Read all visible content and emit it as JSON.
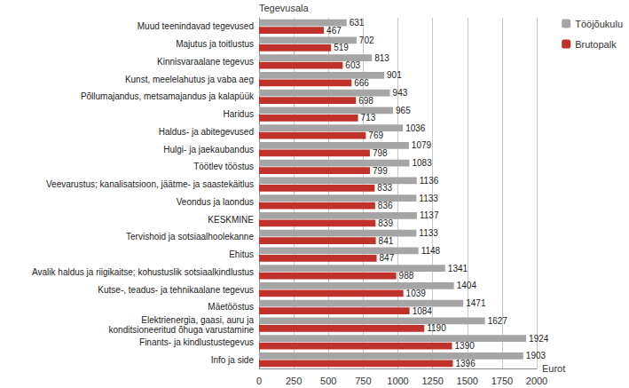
{
  "chart_data": {
    "type": "bar",
    "orientation": "horizontal",
    "y_label": "Tegevusala",
    "x_label": "Eurot",
    "categories": [
      "Muud teenindavad tegevused",
      "Majutus ja toitlustus",
      "Kinnisvaraalane tegevus",
      "Kunst, meelelahutus ja vaba aeg",
      "Põllumajandus, metsamajandus ja kalapüük",
      "Haridus",
      "Haldus- ja abitegevused",
      "Hulgi- ja jaekaubandus",
      "Töötlev tööstus",
      "Veevarustus; kanalisatsioon, jäätme- ja saastekäitlus",
      "Veondus ja laondus",
      "KESKMINE",
      "Tervishoid ja sotsiaalhoolekanne",
      "Ehitus",
      "Avalik haldus ja riigikaitse; kohustuslik sotsiaalkindlustus",
      "Kutse-, teadus- ja tehnikaalane tegevus",
      "Mäetööstus",
      "Elektrienergia, gaasi, auru ja\nkonditsioneeritud õhuga varustamine",
      "Finants- ja kindlustustegevus",
      "Info ja side"
    ],
    "series": [
      {
        "name": "Tööjõukulu",
        "color": "#a5a5a5",
        "values": [
          631,
          702,
          813,
          901,
          943,
          965,
          1036,
          1079,
          1083,
          1136,
          1133,
          1137,
          1133,
          1148,
          1341,
          1404,
          1471,
          1627,
          1924,
          1903
        ]
      },
      {
        "name": "Brutopalk",
        "color": "#c0312b",
        "values": [
          467,
          519,
          603,
          666,
          698,
          713,
          769,
          798,
          799,
          833,
          836,
          839,
          841,
          847,
          988,
          1039,
          1084,
          1190,
          1390,
          1396
        ]
      }
    ],
    "xlim": [
      0,
      2000
    ],
    "xticks": [
      0,
      250,
      500,
      750,
      1000,
      1250,
      1500,
      1750,
      2000
    ],
    "grid": true,
    "data_labels": true,
    "legend": "upper right"
  }
}
